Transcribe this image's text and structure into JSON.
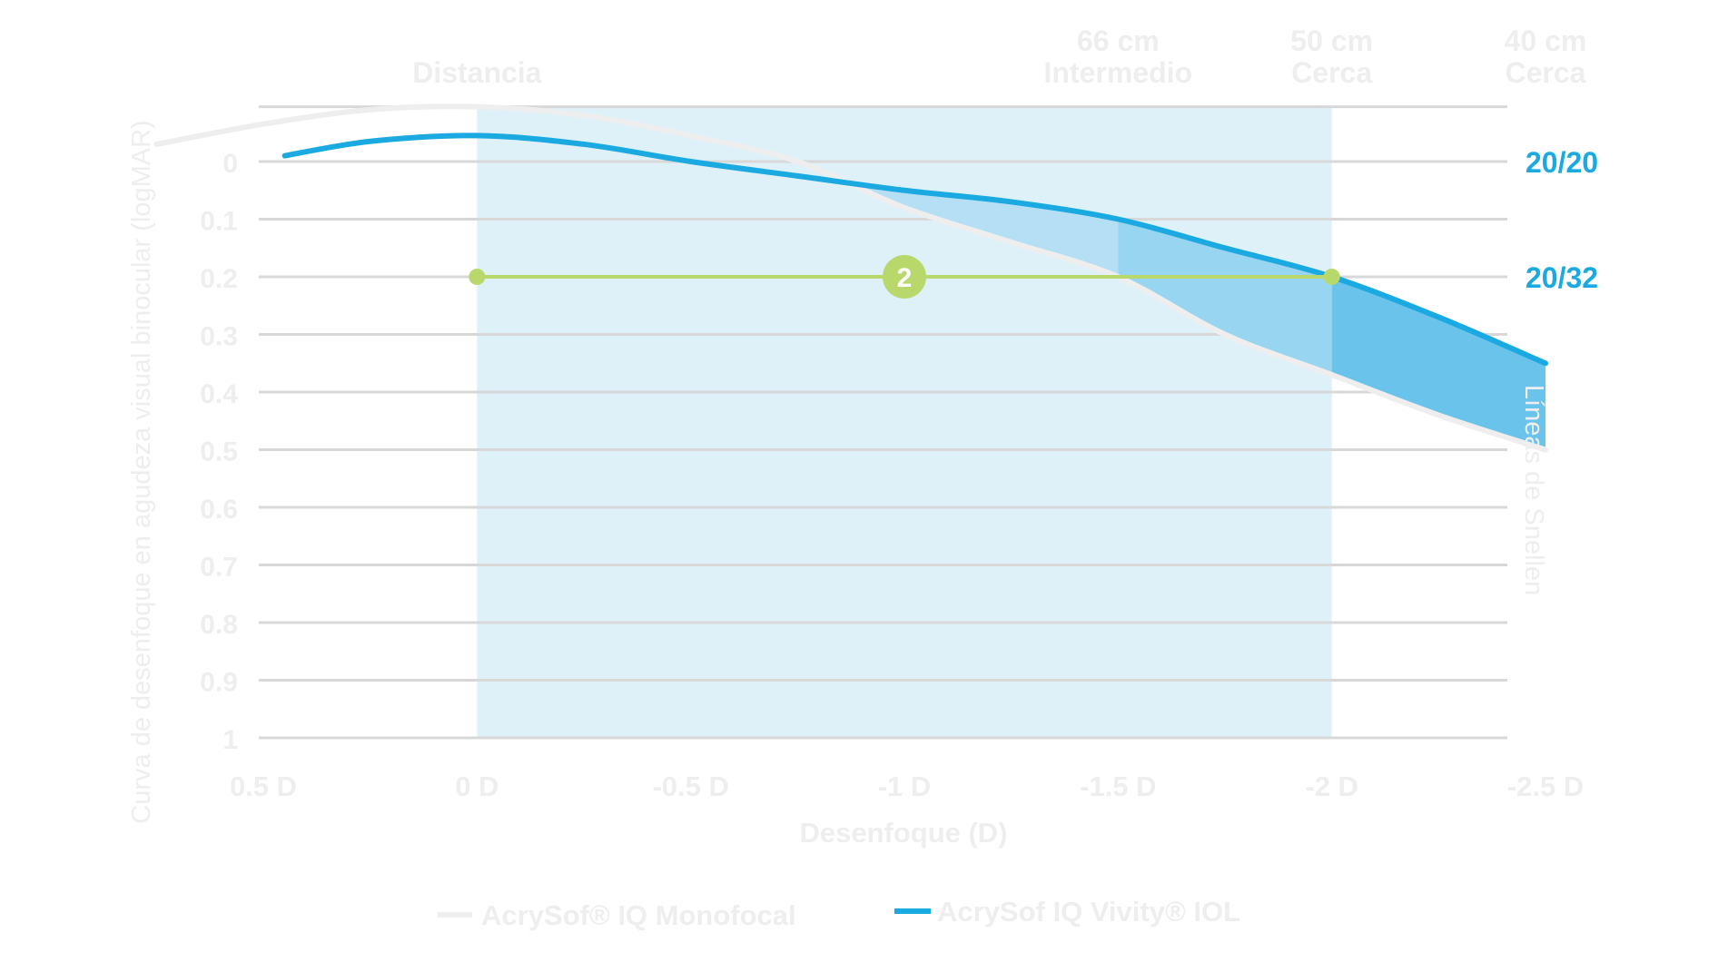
{
  "chart_data": {
    "type": "line",
    "xlabel": "Desenfoque (D)",
    "ylabel": "Curva de desenfoque en agudeza visual binocular (logMAR)",
    "right_label": "Líneas de Snellen",
    "x_ticks": [
      "0.5 D",
      "0 D",
      "-0.5 D",
      "-1 D",
      "-1.5 D",
      "-2 D",
      "-2.5 D"
    ],
    "y_ticks": [
      "0",
      "0.1",
      "0.2",
      "0.3",
      "0.4",
      "0.5",
      "0.6",
      "0.7",
      "0.8",
      "0.9",
      "1"
    ],
    "xlim": [
      0.5,
      -2.5
    ],
    "ylim": [
      -0.1,
      1.0
    ],
    "snellen_labels": [
      {
        "y": 0.0,
        "text": "20/20"
      },
      {
        "y": 0.2,
        "text": "20/32"
      }
    ],
    "top_labels": [
      {
        "x": 0.0,
        "lines": [
          "Distancia"
        ]
      },
      {
        "x": -1.5,
        "lines": [
          "66 cm",
          "Intermedio"
        ]
      },
      {
        "x": -2.0,
        "lines": [
          "50 cm",
          "Cerca"
        ]
      },
      {
        "x": -2.5,
        "lines": [
          "40 cm",
          "Cerca"
        ]
      }
    ],
    "shaded_range": [
      0.0,
      -2.0
    ],
    "series": [
      {
        "name": "AcrySof® IQ Monofocal",
        "color": "#eeeeee",
        "x": [
          0.75,
          0.5,
          0.25,
          0.0,
          -0.25,
          -0.5,
          -0.75,
          -1.0,
          -1.25,
          -1.5,
          -1.75,
          -2.0,
          -2.25,
          -2.5
        ],
        "y": [
          -0.03,
          -0.065,
          -0.09,
          -0.095,
          -0.08,
          -0.045,
          0.0,
          0.08,
          0.14,
          0.2,
          0.3,
          0.37,
          0.44,
          0.5
        ]
      },
      {
        "name": "AcrySof IQ Vivity® IOL",
        "color": "#1aa9e1",
        "x": [
          0.45,
          0.25,
          0.0,
          -0.25,
          -0.5,
          -0.75,
          -1.0,
          -1.25,
          -1.5,
          -1.75,
          -2.0,
          -2.25,
          -2.5
        ],
        "y": [
          -0.01,
          -0.035,
          -0.045,
          -0.03,
          0.0,
          0.025,
          0.05,
          0.07,
          0.1,
          0.15,
          0.2,
          0.27,
          0.35
        ]
      }
    ],
    "threshold": {
      "y": 0.2,
      "x_start": 0.0,
      "x_end": -2.0,
      "marker_x": -1.0,
      "marker_label": "2",
      "color": "#b9d86b"
    },
    "legend": {
      "position": "bottom"
    },
    "grid": true,
    "colors": {
      "axis_text": "#eeeeee",
      "grid": "#d8d8d8",
      "shade": "#def1f9",
      "accent": "#1aa9e1"
    }
  }
}
